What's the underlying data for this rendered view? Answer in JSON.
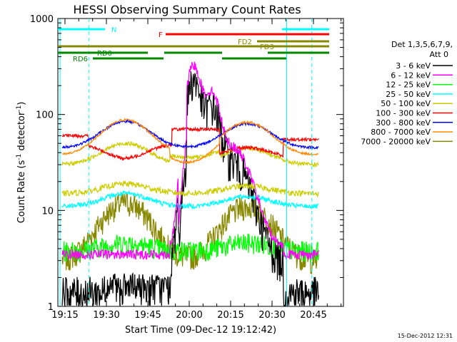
{
  "chart_data": {
    "type": "line",
    "title": "HESSI Observing Summary Count Rates",
    "xlabel": "Start Time (09-Dec-12 19:12:42)",
    "ylabel_main": "Count Rate (s",
    "ylabel_sup1": "-1",
    "ylabel_mid": " detector",
    "ylabel_sup2": "-1",
    "ylabel_end": ")",
    "x_tick_labels": [
      "19:15",
      "19:30",
      "19:45",
      "20:00",
      "20:15",
      "20:30",
      "20:45"
    ],
    "y_tick_labels": [
      "1",
      "10",
      "100",
      "1000"
    ],
    "y_scale": "log",
    "ylim": [
      1,
      1000
    ],
    "legend_header": [
      "Det 1,3,5,6,7,9,",
      "Att 0"
    ],
    "footer_stamp": "15-Dec-2012 12:31",
    "flag_labels": {
      "N": "N",
      "F": "F",
      "FD2": "FD2",
      "FD3": "FD3",
      "RD0": "RD0",
      "RD6": "RD6"
    },
    "series": [
      {
        "name": "3 - 6 keV",
        "color": "#000000",
        "base": 1.8
      },
      {
        "name": "6 - 12 keV",
        "color": "#ff00ff",
        "base": 4
      },
      {
        "name": "12 - 25 keV",
        "color": "#00ff00",
        "base": 3.5
      },
      {
        "name": "25 - 50 keV",
        "color": "#00ffff",
        "base": 10
      },
      {
        "name": "50 - 100 keV",
        "color": "#cccc00",
        "base": 16
      },
      {
        "name": "100 - 300 keV",
        "color": "#ff0000",
        "base": 55
      },
      {
        "name": "300 - 800 keV",
        "color": "#0000ff",
        "base": 45
      },
      {
        "name": "800 - 7000 keV",
        "color": "#ff8800",
        "base": 40
      },
      {
        "name": "7000 - 20000 keV",
        "color": "#888800",
        "base": 3
      }
    ]
  }
}
